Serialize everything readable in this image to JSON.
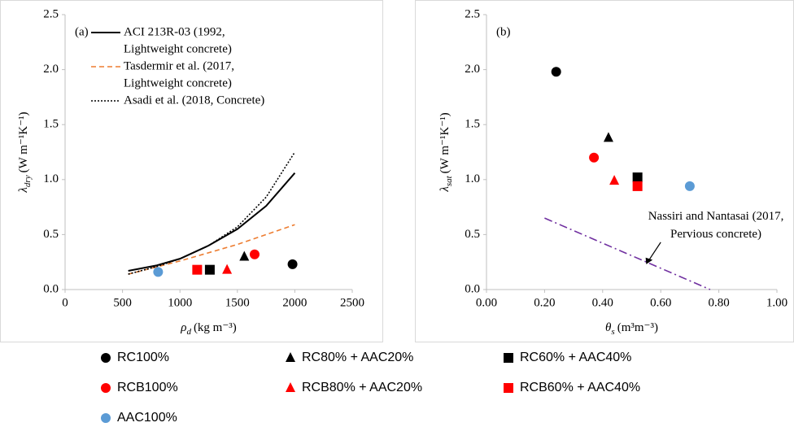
{
  "chart_data": [
    {
      "type": "scatter",
      "panel": "(a)",
      "x_label": {
        "symbol": "ρ",
        "subscript": "d",
        "unit": "(kg m⁻³)"
      },
      "y_label": {
        "symbol": "λ",
        "subscript": "dry",
        "unit": "(W m⁻¹K⁻¹)"
      },
      "xlim": [
        0,
        2500
      ],
      "xticks": [
        0,
        500,
        1000,
        1500,
        2000,
        2500
      ],
      "ylim": [
        0,
        2.5
      ],
      "yticks": [
        {
          "value": 0,
          "label": "0.0"
        },
        {
          "value": 0.5,
          "label": "0.5"
        },
        {
          "value": 1,
          "label": "1.0"
        },
        {
          "value": 1.5,
          "label": "1.5"
        },
        {
          "value": 2,
          "label": "2.0"
        },
        {
          "value": 2.5,
          "label": "2.5"
        }
      ],
      "series": [
        {
          "name": [
            "ACI 213R-03 (1992,",
            "Lightweight concrete)"
          ],
          "color": "#000000",
          "style": "solid",
          "x": [
            550,
            800,
            1000,
            1250,
            1500,
            1750,
            2000
          ],
          "values": [
            0.17,
            0.22,
            0.28,
            0.4,
            0.55,
            0.76,
            1.06
          ]
        },
        {
          "name": [
            "Tasdermir et al. (2017,",
            "Lightweight concrete)"
          ],
          "color": "#ed7d31",
          "style": "dashed",
          "x": [
            550,
            1000,
            1500,
            2000
          ],
          "values": [
            0.14,
            0.26,
            0.41,
            0.59
          ]
        },
        {
          "name": [
            "Asadi et al. (2018, Concrete)"
          ],
          "color": "#000000",
          "style": "dotted",
          "x": [
            550,
            800,
            1000,
            1250,
            1500,
            1750,
            2000
          ],
          "values": [
            0.14,
            0.21,
            0.28,
            0.4,
            0.57,
            0.84,
            1.25
          ]
        },
        {
          "name": "RC100%",
          "color": "#000000",
          "marker": "circle",
          "x": [
            1980
          ],
          "values": [
            0.23
          ]
        },
        {
          "name": "RC80% + AAC20%",
          "color": "#000000",
          "marker": "triangle",
          "x": [
            1560
          ],
          "values": [
            0.3
          ]
        },
        {
          "name": "RC60% + AAC40%",
          "color": "#000000",
          "marker": "square",
          "x": [
            1260
          ],
          "values": [
            0.18
          ]
        },
        {
          "name": "RCB100%",
          "color": "#ff0000",
          "marker": "circle",
          "x": [
            1650
          ],
          "values": [
            0.32
          ]
        },
        {
          "name": "RCB80% + AAC20%",
          "color": "#ff0000",
          "marker": "triangle",
          "x": [
            1410
          ],
          "values": [
            0.18
          ]
        },
        {
          "name": "RCB60% + AAC40%",
          "color": "#ff0000",
          "marker": "square",
          "x": [
            1150
          ],
          "values": [
            0.18
          ]
        },
        {
          "name": "AAC100%",
          "color": "#5b9bd5",
          "marker": "circle",
          "x": [
            810
          ],
          "values": [
            0.16
          ]
        }
      ]
    },
    {
      "type": "scatter",
      "panel": "(b)",
      "x_label": {
        "symbol": "θ",
        "subscript": "s",
        "unit": "(m³m⁻³)"
      },
      "y_label": {
        "symbol": "λ",
        "subscript": "sat",
        "unit": "(W m⁻¹K⁻¹)"
      },
      "xlim": [
        0,
        1
      ],
      "xticks": [
        {
          "value": 0,
          "label": "0.00"
        },
        {
          "value": 0.2,
          "label": "0.20"
        },
        {
          "value": 0.4,
          "label": "0.40"
        },
        {
          "value": 0.6,
          "label": "0.60"
        },
        {
          "value": 0.8,
          "label": "0.80"
        },
        {
          "value": 1,
          "label": "1.00"
        }
      ],
      "ylim": [
        0,
        2.5
      ],
      "yticks": [
        {
          "value": 0,
          "label": "0.0"
        },
        {
          "value": 0.5,
          "label": "0.5"
        },
        {
          "value": 1,
          "label": "1.0"
        },
        {
          "value": 1.5,
          "label": "1.5"
        },
        {
          "value": 2,
          "label": "2.0"
        },
        {
          "value": 2.5,
          "label": "2.5"
        }
      ],
      "annotation": [
        "Nassiri and Nantasai (2017,",
        "Pervious concrete)"
      ],
      "series": [
        {
          "color": "#000000",
          "marker": "circle",
          "x": [
            0.24
          ],
          "values": [
            1.98
          ]
        },
        {
          "color": "#000000",
          "marker": "triangle",
          "x": [
            0.42
          ],
          "values": [
            1.38
          ]
        },
        {
          "color": "#000000",
          "marker": "square",
          "x": [
            0.52
          ],
          "values": [
            1.02
          ]
        },
        {
          "color": "#ff0000",
          "marker": "circle",
          "x": [
            0.37
          ],
          "values": [
            1.2
          ]
        },
        {
          "color": "#ff0000",
          "marker": "triangle",
          "x": [
            0.44
          ],
          "values": [
            0.99
          ]
        },
        {
          "color": "#ff0000",
          "marker": "square",
          "x": [
            0.52
          ],
          "values": [
            0.94
          ]
        },
        {
          "color": "#5b9bd5",
          "marker": "circle",
          "x": [
            0.7
          ],
          "values": [
            0.94
          ]
        },
        {
          "color": "#7030a0",
          "style": "dashdot",
          "x": [
            0.2,
            0.77
          ],
          "values": [
            0.65,
            0
          ]
        }
      ]
    }
  ]
}
